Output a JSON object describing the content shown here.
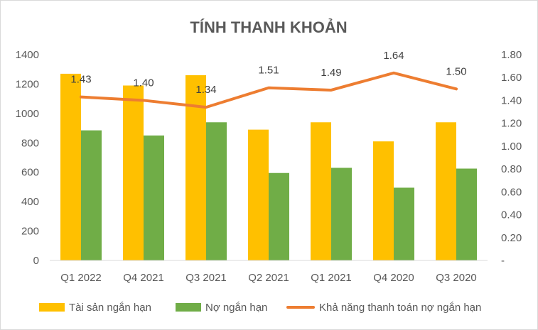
{
  "chart_data": {
    "type": "bar",
    "title": "TÍNH THANH KHOẢN",
    "categories": [
      "Q1 2022",
      "Q4 2021",
      "Q3 2021",
      "Q2 2021",
      "Q1 2021",
      "Q4 2020",
      "Q3 2020"
    ],
    "series": [
      {
        "name": "Tài sản ngắn hạn",
        "type": "bar",
        "axis": "left",
        "color": "#ffc000",
        "values": [
          1270,
          1190,
          1260,
          890,
          940,
          810,
          940
        ]
      },
      {
        "name": "Nợ ngắn hạn",
        "type": "bar",
        "axis": "left",
        "color": "#70ad47",
        "values": [
          885,
          850,
          940,
          595,
          630,
          495,
          625
        ]
      },
      {
        "name": "Khả năng thanh toán nợ ngắn hạn",
        "type": "line",
        "axis": "right",
        "color": "#ed7d31",
        "values": [
          1.43,
          1.4,
          1.34,
          1.51,
          1.49,
          1.64,
          1.5
        ],
        "labels": [
          "1.43",
          "1.40",
          "1.34",
          "1.51",
          "1.49",
          "1.64",
          "1.50"
        ]
      }
    ],
    "y_left": {
      "min": 0,
      "max": 1400,
      "ticks": [
        "0",
        "200",
        "400",
        "600",
        "800",
        "1000",
        "1200",
        "1400"
      ]
    },
    "y_right": {
      "min": 0,
      "max": 1.8,
      "ticks": [
        "-",
        "0.20",
        "0.40",
        "0.60",
        "0.80",
        "1.00",
        "1.20",
        "1.40",
        "1.60",
        "1.80"
      ]
    },
    "grid": false,
    "legend_position": "bottom"
  }
}
